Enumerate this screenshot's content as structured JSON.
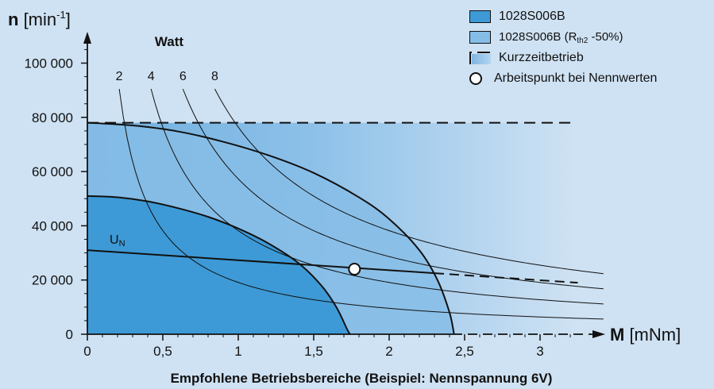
{
  "chart_data": {
    "type": "area",
    "title": "Empfohlene Betriebsbereiche (Beispiel: Nennspannung 6V)",
    "y_axis": {
      "label_bold": "n",
      "label_rest": " [min",
      "label_sup": "-1",
      "label_end": "]",
      "range": [
        0,
        100000
      ],
      "ticks": [
        0,
        20000,
        40000,
        60000,
        80000,
        100000
      ],
      "tick_labels": [
        "0",
        "20 000",
        "40 000",
        "60 000",
        "80 000",
        "100 000"
      ]
    },
    "x_axis": {
      "label_bold": "M",
      "label_rest": " [mNm]",
      "range": [
        0,
        3.3
      ],
      "ticks": [
        0,
        0.5,
        1,
        1.5,
        2,
        2.5,
        3
      ],
      "tick_labels": [
        "0",
        "0,5",
        "1",
        "1,5",
        "2",
        "2,5",
        "3"
      ]
    },
    "watt_heading": "Watt",
    "power_curves": [
      {
        "label": "2",
        "watts": 2
      },
      {
        "label": "4",
        "watts": 4
      },
      {
        "label": "6",
        "watts": 6
      },
      {
        "label": "8",
        "watts": 8
      }
    ],
    "regions": [
      {
        "name": "1028S006B",
        "color": "#3d9ad6",
        "boundary": [
          [
            0,
            51000
          ],
          [
            0.2,
            50500
          ],
          [
            0.4,
            49000
          ],
          [
            0.6,
            46500
          ],
          [
            0.8,
            43300
          ],
          [
            1.0,
            39000
          ],
          [
            1.2,
            33500
          ],
          [
            1.4,
            26200
          ],
          [
            1.55,
            18000
          ],
          [
            1.65,
            10000
          ],
          [
            1.72,
            2000
          ],
          [
            1.74,
            0
          ]
        ]
      },
      {
        "name": "1028S006B (Rth2 -50%)",
        "color": "#86bde6",
        "boundary": [
          [
            0,
            78000
          ],
          [
            0.3,
            77000
          ],
          [
            0.6,
            74800
          ],
          [
            0.9,
            71000
          ],
          [
            1.2,
            66000
          ],
          [
            1.5,
            59500
          ],
          [
            1.8,
            50500
          ],
          [
            2.0,
            42500
          ],
          [
            2.2,
            31000
          ],
          [
            2.32,
            20000
          ],
          [
            2.4,
            8000
          ],
          [
            2.43,
            0
          ]
        ]
      },
      {
        "name": "Kurzzeitbetrieb",
        "color": "#b3d5ef",
        "n_max": 78000,
        "m_max": 3.25
      }
    ],
    "un_line": {
      "label": "U",
      "label_sub": "N",
      "points": [
        [
          0,
          31000
        ],
        [
          3.25,
          19000
        ]
      ],
      "solid_until": 2.3
    },
    "operating_point": {
      "label": "Arbeitspunkt bei Nennwerten",
      "x": 1.77,
      "y": 24000
    },
    "legend": [
      {
        "type": "swatch",
        "label": "1028S006B",
        "sub": "",
        "rest": "",
        "color": "#3d9ad6"
      },
      {
        "type": "swatch",
        "label": "1028S006B (R",
        "sub": "th2",
        "rest": " -50%)",
        "color": "#86bde6"
      },
      {
        "type": "dash",
        "label": "Kurzzeitbetrieb",
        "sub": "",
        "rest": "",
        "color": "#b3d5ef"
      },
      {
        "type": "circle",
        "label": "Arbeitspunkt bei Nennwerten",
        "sub": "",
        "rest": "",
        "color": "#ffffff"
      }
    ],
    "legend_position": "top-right",
    "grid": false
  }
}
